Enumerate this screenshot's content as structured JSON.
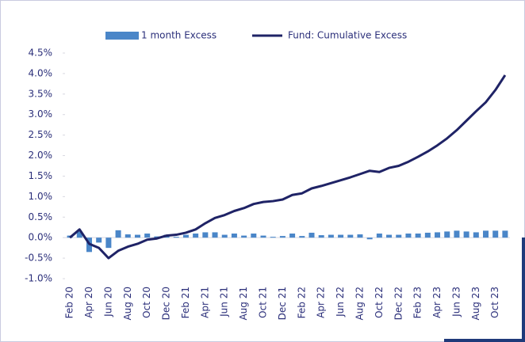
{
  "chart_data": {
    "type": "bar_line",
    "categories": [
      "Feb 20",
      null,
      "Apr 20",
      null,
      "Jun 20",
      null,
      "Aug 20",
      null,
      "Oct 20",
      null,
      "Dec 20",
      null,
      "Feb 21",
      null,
      "Apr 21",
      null,
      "Jun 21",
      null,
      "Aug 21",
      null,
      "Oct 21",
      null,
      "Dec 21",
      null,
      "Feb 22",
      null,
      "Apr 22",
      null,
      "Jun 22",
      null,
      "Aug 22",
      null,
      "Oct 22",
      null,
      "Dec 22",
      null,
      "Feb 23",
      null,
      "Apr 23",
      null,
      "Jun 23",
      null,
      "Aug 23",
      null,
      "Oct 23",
      null
    ],
    "series": [
      {
        "name": "1 month Excess",
        "type": "bar",
        "color": "#4a86c8",
        "values": [
          0.05,
          0.15,
          -0.35,
          -0.12,
          -0.25,
          0.18,
          0.08,
          0.07,
          0.1,
          0.03,
          0.07,
          0.02,
          0.07,
          0.1,
          0.13,
          0.13,
          0.07,
          0.1,
          0.05,
          0.1,
          0.05,
          0.02,
          0.04,
          0.1,
          0.04,
          0.12,
          0.06,
          0.07,
          0.07,
          0.07,
          0.08,
          -0.04,
          0.1,
          0.07,
          0.07,
          0.1,
          0.1,
          0.12,
          0.13,
          0.15,
          0.17,
          0.15,
          0.13,
          0.17,
          0.17,
          0.17
        ]
      },
      {
        "name": "Fund: Cumulative Excess",
        "type": "line",
        "color": "#1f2366",
        "values": [
          0,
          0.2,
          -0.15,
          -0.25,
          -0.5,
          -0.32,
          -0.22,
          -0.15,
          -0.05,
          -0.02,
          0.05,
          0.07,
          0.12,
          0.2,
          0.35,
          0.48,
          0.55,
          0.65,
          0.72,
          0.82,
          0.87,
          0.89,
          0.93,
          1.04,
          1.08,
          1.2,
          1.26,
          1.33,
          1.4,
          1.47,
          1.55,
          1.63,
          1.6,
          1.7,
          1.75,
          1.85,
          1.97,
          2.1,
          2.25,
          2.42,
          2.62,
          2.85,
          3.08,
          3.3,
          3.6,
          3.96
        ]
      }
    ],
    "ylim": [
      -1,
      4.5
    ],
    "yticks": [
      {
        "value": -1,
        "label": "-1.0%"
      },
      {
        "value": -0.5,
        "label": "-0.5%"
      },
      {
        "value": 0,
        "label": "0.0%"
      },
      {
        "value": 0.5,
        "label": "0.5%"
      },
      {
        "value": 1,
        "label": "1.0%"
      },
      {
        "value": 1.5,
        "label": "1.5%"
      },
      {
        "value": 2,
        "label": "2.0%"
      },
      {
        "value": 2.5,
        "label": "2.5%"
      },
      {
        "value": 3,
        "label": "3.0%"
      },
      {
        "value": 3.5,
        "label": "3.5%"
      },
      {
        "value": 4,
        "label": "4.0%"
      },
      {
        "value": 4.5,
        "label": "4.5%"
      }
    ],
    "grid": false,
    "legend": "top"
  }
}
